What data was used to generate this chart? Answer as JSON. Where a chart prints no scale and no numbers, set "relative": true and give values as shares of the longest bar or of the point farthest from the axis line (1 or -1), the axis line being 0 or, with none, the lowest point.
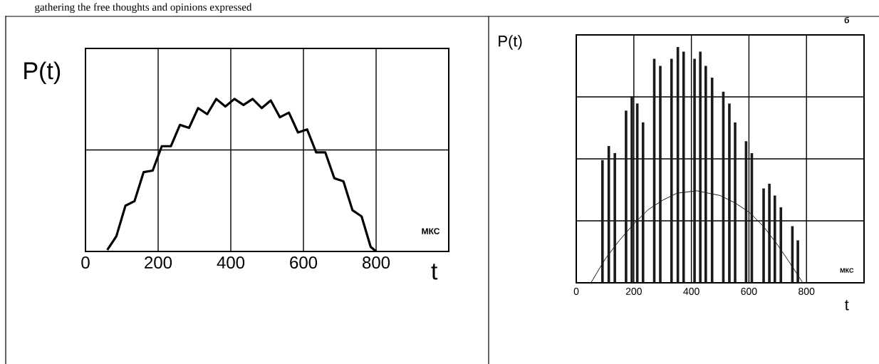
{
  "chart_data": [
    {
      "type": "line",
      "relative": true,
      "xlim": [
        0,
        1000
      ],
      "xticks": [
        0,
        200,
        400,
        600,
        800
      ],
      "grid": true,
      "xlabel": "t",
      "ylabel": "P(t)",
      "annotations": [
        "gathering the free thoughts and opinions expressed",
        "МКС"
      ],
      "series": [
        {
          "color": "#000000",
          "x": [
            60,
            85,
            110,
            135,
            160,
            185,
            210,
            235,
            260,
            285,
            310,
            335,
            360,
            385,
            410,
            435,
            460,
            485,
            510,
            535,
            560,
            585,
            610,
            635,
            660,
            685,
            710,
            735,
            760,
            785,
            800
          ],
          "values": [
            0.01,
            0.1,
            0.3,
            0.33,
            0.52,
            0.53,
            0.69,
            0.69,
            0.83,
            0.81,
            0.94,
            0.9,
            1.0,
            0.95,
            1.0,
            0.96,
            1.0,
            0.94,
            0.99,
            0.88,
            0.91,
            0.78,
            0.8,
            0.65,
            0.65,
            0.48,
            0.46,
            0.27,
            0.23,
            0.03,
            0
          ]
        }
      ]
    },
    {
      "type": "bar",
      "relative": true,
      "xlim": [
        0,
        1000
      ],
      "xticks": [
        0,
        200,
        400,
        600,
        800
      ],
      "grid": true,
      "xlabel": "t",
      "ylabel": "P(t)",
      "annotations": [
        "МКС",
        "б"
      ],
      "series": [
        {
          "type": "bar",
          "color": "#1a1a1a",
          "x": [
            91,
            113,
            134,
            173,
            193,
            212,
            232,
            271,
            292,
            331,
            353,
            373,
            411,
            431,
            450,
            472,
            511,
            532,
            552,
            590,
            610,
            651,
            671,
            690,
            711,
            751,
            770
          ],
          "values": [
            0.52,
            0.58,
            0.55,
            0.73,
            0.79,
            0.76,
            0.68,
            0.95,
            0.92,
            0.95,
            1,
            0.98,
            0.95,
            0.98,
            0.92,
            0.87,
            0.81,
            0.76,
            0.68,
            0.6,
            0.55,
            0.4,
            0.42,
            0.37,
            0.32,
            0.24,
            0.18
          ]
        },
        {
          "type": "line",
          "color": "#1a1a1a",
          "x": [
            51,
            100,
            150,
            200,
            250,
            300,
            350,
            419,
            500,
            550,
            600,
            650,
            700,
            750,
            787
          ],
          "values": [
            0,
            0.1,
            0.18,
            0.25,
            0.31,
            0.35,
            0.38,
            0.39,
            0.37,
            0.34,
            0.3,
            0.24,
            0.16,
            0.07,
            0
          ]
        }
      ]
    }
  ]
}
